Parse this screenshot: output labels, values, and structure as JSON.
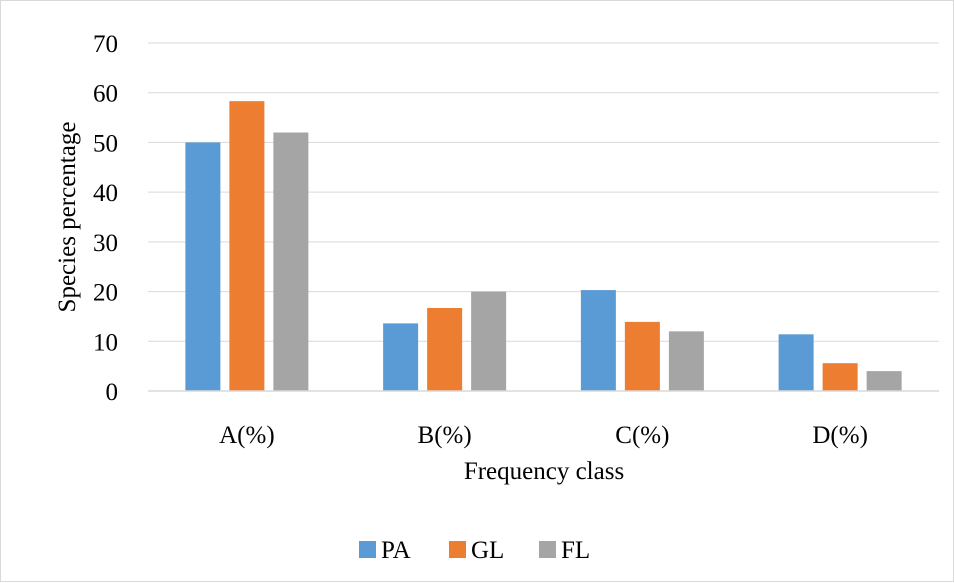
{
  "chart_data": {
    "type": "bar",
    "title": "",
    "xlabel": "Frequency class",
    "ylabel": "Species percentage",
    "categories": [
      "A(%)",
      "B(%)",
      "C(%)",
      "D(%)"
    ],
    "series": [
      {
        "name": "PA",
        "color": "#5b9bd5",
        "values": [
          50.0,
          13.6,
          20.3,
          11.4
        ]
      },
      {
        "name": "GL",
        "color": "#ed7d31",
        "values": [
          58.3,
          16.7,
          13.9,
          5.6
        ]
      },
      {
        "name": "FL",
        "color": "#a5a5a5",
        "values": [
          52.0,
          20.0,
          12.0,
          4.0
        ]
      }
    ],
    "ylim": [
      0,
      70
    ],
    "yticks": [
      0,
      10,
      20,
      30,
      40,
      50,
      60,
      70
    ],
    "grid": true,
    "legend_position": "bottom"
  }
}
